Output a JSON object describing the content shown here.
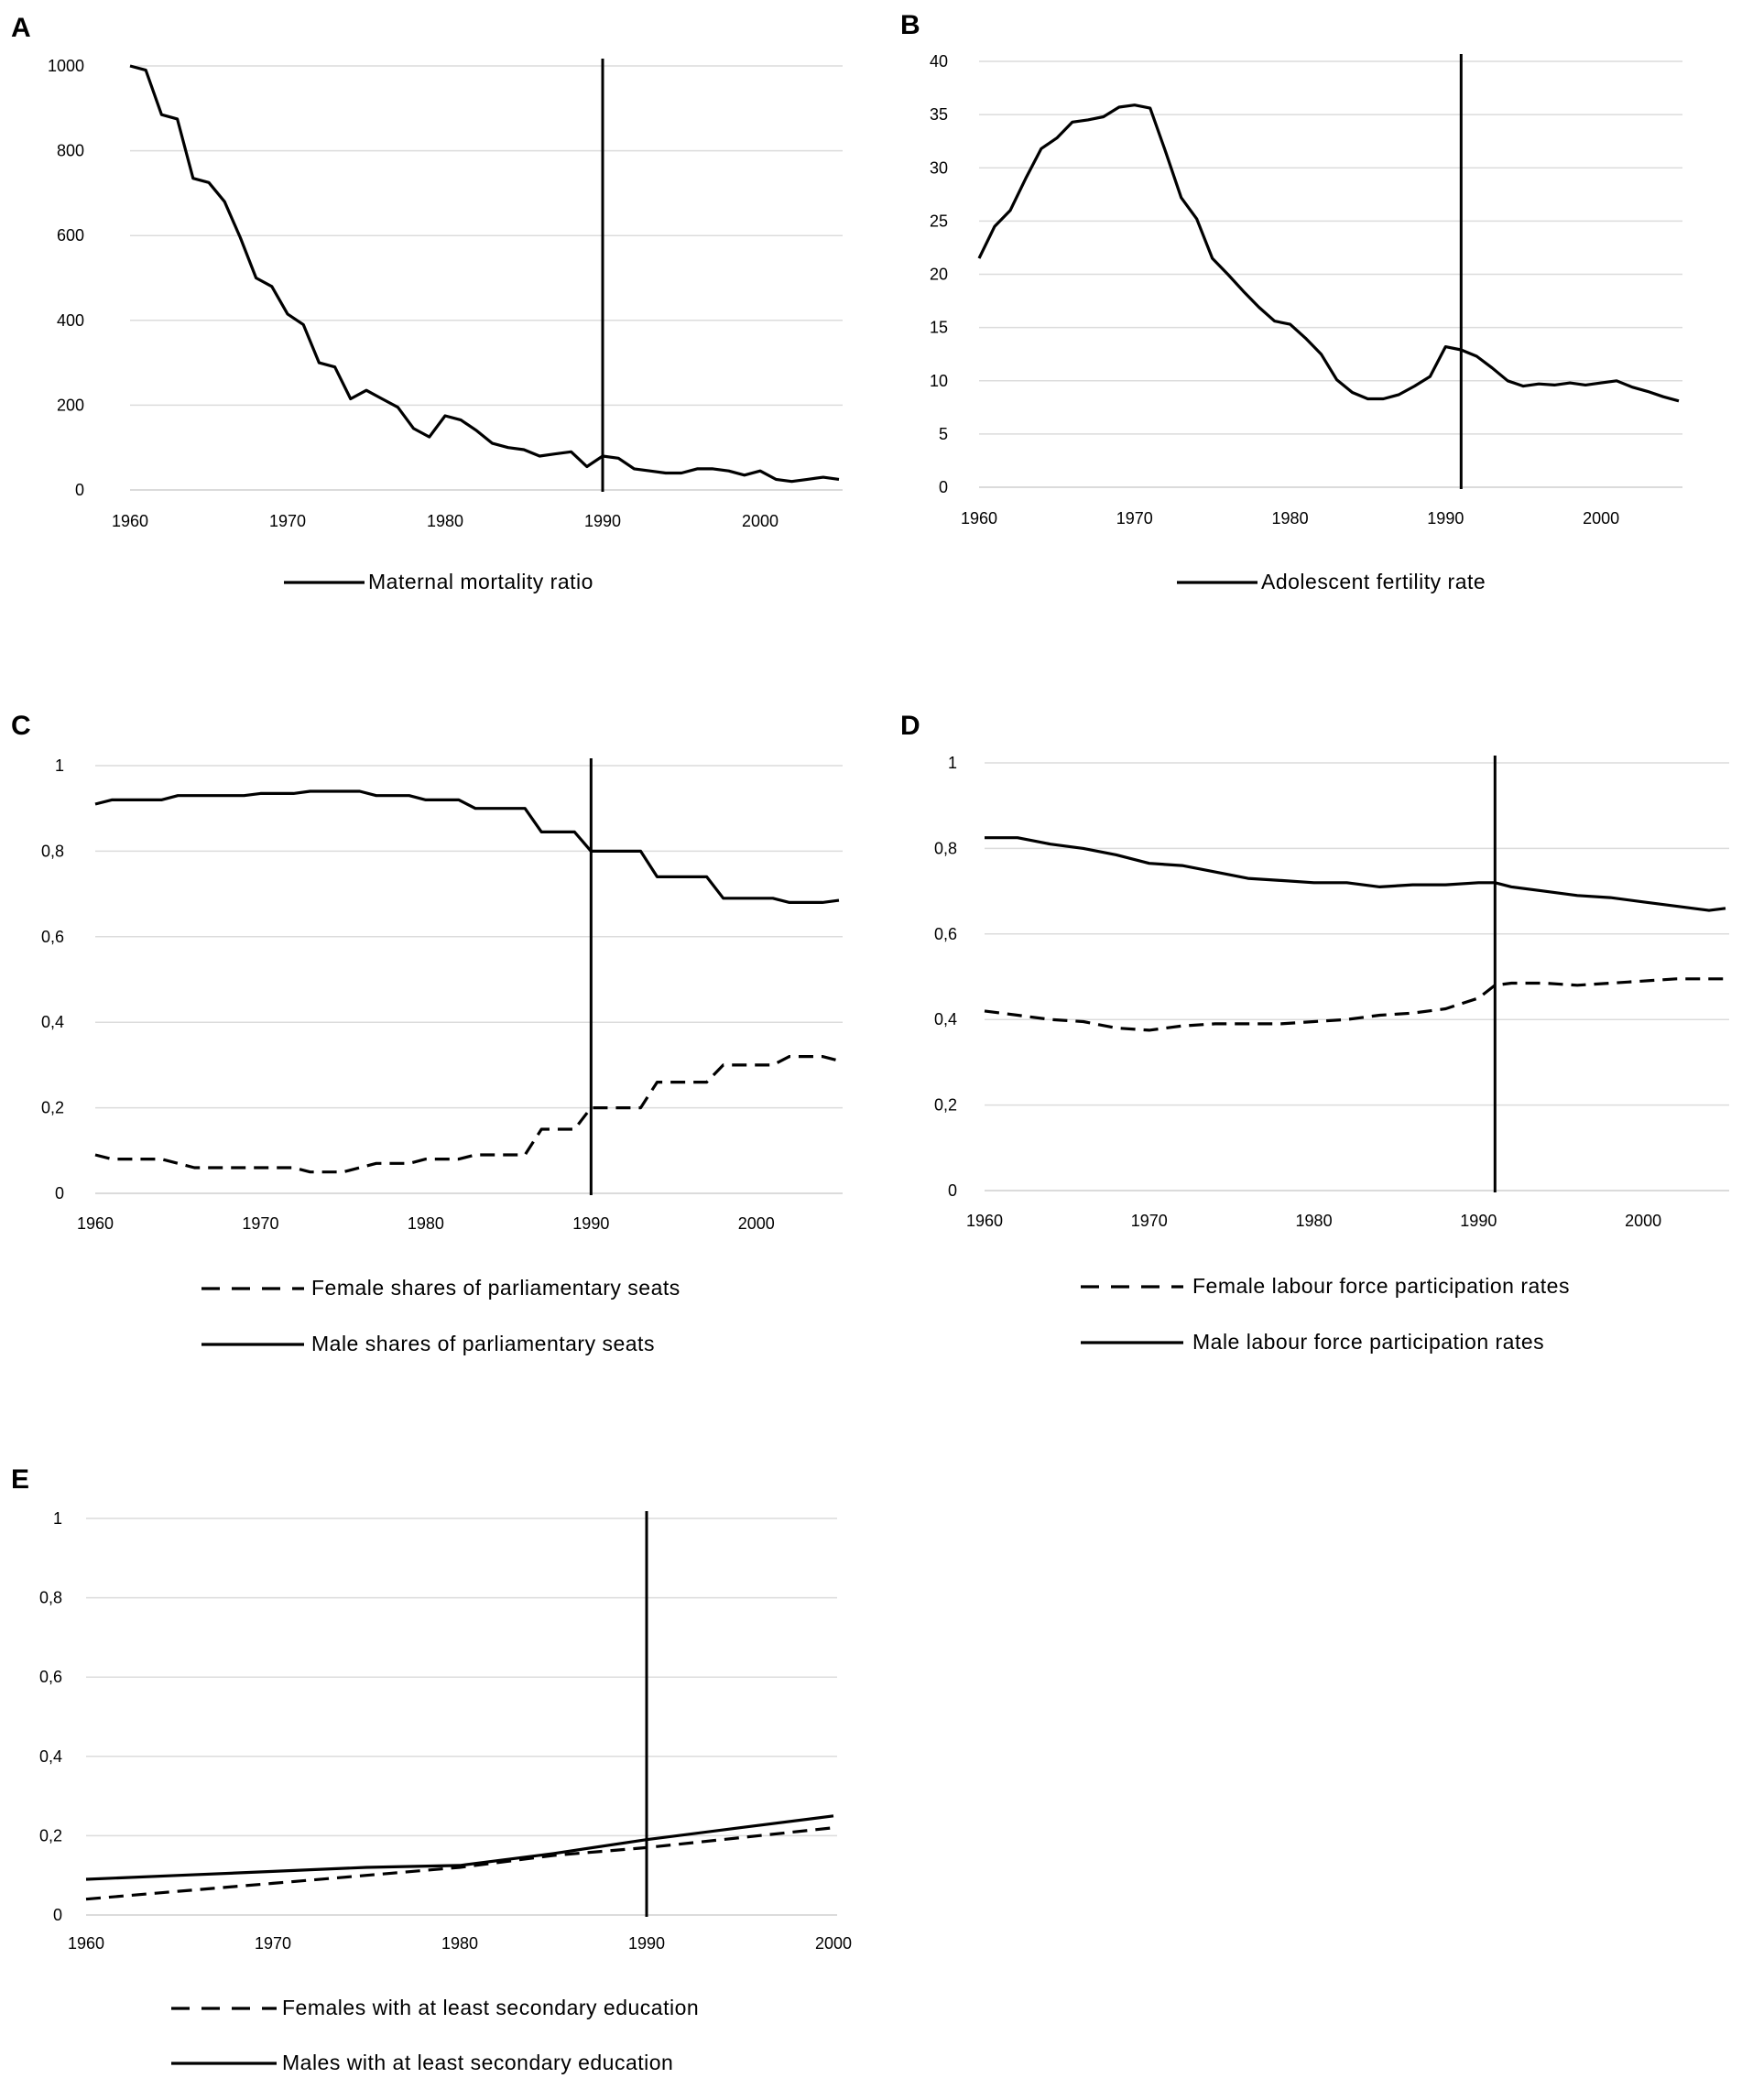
{
  "chart_data": [
    {
      "type": "line",
      "panel": "A",
      "title": "",
      "xlabel": "",
      "ylabel": "",
      "xlim": [
        1960,
        2005
      ],
      "ylim": [
        0,
        1000
      ],
      "xticks": [
        "1960",
        "1970",
        "1980",
        "1990",
        "2000"
      ],
      "yticks": [
        "0",
        "200",
        "400",
        "600",
        "800",
        "1000"
      ],
      "grid": "horizontal",
      "legend_position": "bottom",
      "reference_line_x": 1990,
      "series": [
        {
          "name": "Maternal mortality ratio",
          "style": "solid",
          "x": [
            1960,
            1961,
            1962,
            1963,
            1964,
            1965,
            1966,
            1967,
            1968,
            1969,
            1970,
            1971,
            1972,
            1973,
            1974,
            1975,
            1976,
            1977,
            1978,
            1979,
            1980,
            1981,
            1982,
            1983,
            1984,
            1985,
            1986,
            1987,
            1988,
            1989,
            1990,
            1991,
            1992,
            1993,
            1994,
            1995,
            1996,
            1997,
            1998,
            1999,
            2000,
            2001,
            2002,
            2003,
            2004,
            2005
          ],
          "values": [
            1010,
            990,
            885,
            875,
            735,
            725,
            680,
            595,
            500,
            480,
            415,
            390,
            300,
            290,
            215,
            235,
            215,
            195,
            145,
            125,
            175,
            165,
            140,
            110,
            100,
            95,
            80,
            85,
            90,
            55,
            80,
            75,
            50,
            45,
            40,
            40,
            50,
            50,
            45,
            35,
            45,
            25,
            20,
            25,
            30,
            25
          ]
        }
      ]
    },
    {
      "type": "line",
      "panel": "B",
      "title": "",
      "xlabel": "",
      "ylabel": "",
      "xlim": [
        1960,
        2005
      ],
      "ylim": [
        0,
        40
      ],
      "xticks": [
        "1960",
        "1970",
        "1980",
        "1990",
        "2000"
      ],
      "yticks": [
        "0",
        "5",
        "10",
        "15",
        "20",
        "25",
        "30",
        "35",
        "40"
      ],
      "grid": "horizontal",
      "legend_position": "bottom",
      "reference_line_x": 1991,
      "series": [
        {
          "name": "Adolescent fertility rate",
          "style": "solid",
          "x": [
            1960,
            1961,
            1962,
            1963,
            1964,
            1965,
            1966,
            1967,
            1968,
            1969,
            1970,
            1971,
            1972,
            1973,
            1974,
            1975,
            1976,
            1977,
            1978,
            1979,
            1980,
            1981,
            1982,
            1983,
            1984,
            1985,
            1986,
            1987,
            1988,
            1989,
            1990,
            1991,
            1992,
            1993,
            1994,
            1995,
            1996,
            1997,
            1998,
            1999,
            2000,
            2001,
            2002,
            2003,
            2004,
            2005
          ],
          "values": [
            21.5,
            24.5,
            26,
            29,
            31.8,
            32.8,
            34.3,
            34.5,
            34.8,
            35.7,
            35.9,
            35.6,
            31.5,
            27.2,
            25.2,
            21.5,
            20,
            18.4,
            16.9,
            15.6,
            15.3,
            14,
            12.5,
            10.1,
            8.9,
            8.3,
            8.3,
            8.7,
            9.5,
            10.4,
            13.2,
            12.9,
            12.3,
            11.2,
            10,
            9.5,
            9.7,
            9.6,
            9.8,
            9.6,
            9.8,
            10,
            9.4,
            9,
            8.5,
            8.1
          ]
        }
      ]
    },
    {
      "type": "line",
      "panel": "C",
      "title": "",
      "xlabel": "",
      "ylabel": "",
      "xlim": [
        1960,
        2005
      ],
      "ylim": [
        0,
        1
      ],
      "xticks": [
        "1960",
        "1970",
        "1980",
        "1990",
        "2000"
      ],
      "yticks": [
        "0",
        "0,2",
        "0,4",
        "0,6",
        "0,8",
        "1"
      ],
      "grid": "horizontal",
      "legend_position": "bottom",
      "reference_line_x": 1990,
      "series": [
        {
          "name": "Female shares of parliamentary seats",
          "style": "dashed",
          "x": [
            1960,
            1961,
            1962,
            1963,
            1964,
            1965,
            1966,
            1967,
            1968,
            1969,
            1970,
            1971,
            1972,
            1973,
            1974,
            1975,
            1976,
            1977,
            1978,
            1979,
            1980,
            1981,
            1982,
            1983,
            1984,
            1985,
            1986,
            1987,
            1988,
            1989,
            1990,
            1991,
            1992,
            1993,
            1994,
            1995,
            1996,
            1997,
            1998,
            1999,
            2000,
            2001,
            2002,
            2003,
            2004,
            2005
          ],
          "values": [
            0.09,
            0.08,
            0.08,
            0.08,
            0.08,
            0.07,
            0.06,
            0.06,
            0.06,
            0.06,
            0.06,
            0.06,
            0.06,
            0.05,
            0.05,
            0.05,
            0.06,
            0.07,
            0.07,
            0.07,
            0.08,
            0.08,
            0.08,
            0.09,
            0.09,
            0.09,
            0.09,
            0.15,
            0.15,
            0.15,
            0.2,
            0.2,
            0.2,
            0.2,
            0.26,
            0.26,
            0.26,
            0.26,
            0.3,
            0.3,
            0.3,
            0.3,
            0.32,
            0.32,
            0.32,
            0.31
          ]
        },
        {
          "name": "Male shares of parliamentary seats",
          "style": "solid",
          "x": [
            1960,
            1961,
            1962,
            1963,
            1964,
            1965,
            1966,
            1967,
            1968,
            1969,
            1970,
            1971,
            1972,
            1973,
            1974,
            1975,
            1976,
            1977,
            1978,
            1979,
            1980,
            1981,
            1982,
            1983,
            1984,
            1985,
            1986,
            1987,
            1988,
            1989,
            1990,
            1991,
            1992,
            1993,
            1994,
            1995,
            1996,
            1997,
            1998,
            1999,
            2000,
            2001,
            2002,
            2003,
            2004,
            2005
          ],
          "values": [
            0.91,
            0.92,
            0.92,
            0.92,
            0.92,
            0.93,
            0.93,
            0.93,
            0.93,
            0.93,
            0.935,
            0.935,
            0.935,
            0.94,
            0.94,
            0.94,
            0.94,
            0.93,
            0.93,
            0.93,
            0.92,
            0.92,
            0.92,
            0.9,
            0.9,
            0.9,
            0.9,
            0.845,
            0.845,
            0.845,
            0.8,
            0.8,
            0.8,
            0.8,
            0.74,
            0.74,
            0.74,
            0.74,
            0.69,
            0.69,
            0.69,
            0.69,
            0.68,
            0.68,
            0.68,
            0.685
          ]
        }
      ]
    },
    {
      "type": "line",
      "panel": "D",
      "title": "",
      "xlabel": "",
      "ylabel": "",
      "xlim": [
        1960,
        2005
      ],
      "ylim": [
        0,
        1
      ],
      "xticks": [
        "1960",
        "1970",
        "1980",
        "1990",
        "2000"
      ],
      "yticks": [
        "0",
        "0,2",
        "0,4",
        "0,6",
        "0,8",
        "1"
      ],
      "grid": "horizontal",
      "legend_position": "bottom",
      "reference_line_x": 1991,
      "series": [
        {
          "name": "Female labour force participation rates",
          "style": "dashed",
          "x": [
            1960,
            1962,
            1964,
            1966,
            1968,
            1970,
            1972,
            1974,
            1976,
            1978,
            1980,
            1982,
            1984,
            1986,
            1988,
            1990,
            1991,
            1992,
            1994,
            1996,
            1998,
            2000,
            2002,
            2004,
            2005
          ],
          "values": [
            0.42,
            0.41,
            0.4,
            0.395,
            0.38,
            0.375,
            0.385,
            0.39,
            0.39,
            0.39,
            0.395,
            0.4,
            0.41,
            0.415,
            0.425,
            0.45,
            0.48,
            0.485,
            0.485,
            0.48,
            0.485,
            0.49,
            0.495,
            0.495,
            0.495
          ]
        },
        {
          "name": "Male labour force participation rates",
          "style": "solid",
          "x": [
            1960,
            1962,
            1964,
            1966,
            1968,
            1970,
            1972,
            1974,
            1976,
            1978,
            1980,
            1982,
            1984,
            1986,
            1988,
            1990,
            1991,
            1992,
            1994,
            1996,
            1998,
            2000,
            2002,
            2004,
            2005
          ],
          "values": [
            0.825,
            0.825,
            0.81,
            0.8,
            0.785,
            0.765,
            0.76,
            0.745,
            0.73,
            0.725,
            0.72,
            0.72,
            0.71,
            0.715,
            0.715,
            0.72,
            0.72,
            0.71,
            0.7,
            0.69,
            0.685,
            0.675,
            0.665,
            0.655,
            0.66
          ]
        }
      ]
    },
    {
      "type": "line",
      "panel": "E",
      "title": "",
      "xlabel": "",
      "ylabel": "",
      "xlim": [
        1960,
        2000
      ],
      "ylim": [
        0,
        1
      ],
      "xticks": [
        "1960",
        "1970",
        "1980",
        "1990",
        "2000"
      ],
      "yticks": [
        "0",
        "0,2",
        "0,4",
        "0,6",
        "0,8",
        "1"
      ],
      "grid": "horizontal",
      "legend_position": "bottom",
      "reference_line_x": 1990,
      "series": [
        {
          "name": "Females with at least secondary education",
          "style": "dashed",
          "x": [
            1960,
            1965,
            1970,
            1975,
            1980,
            1985,
            1990,
            1995,
            2000
          ],
          "values": [
            0.04,
            0.06,
            0.08,
            0.1,
            0.12,
            0.15,
            0.17,
            0.195,
            0.22
          ]
        },
        {
          "name": "Males with at least secondary education",
          "style": "solid",
          "x": [
            1960,
            1965,
            1970,
            1975,
            1980,
            1985,
            1990,
            1995,
            2000
          ],
          "values": [
            0.09,
            0.1,
            0.11,
            0.12,
            0.125,
            0.155,
            0.19,
            0.22,
            0.25
          ]
        }
      ]
    }
  ]
}
